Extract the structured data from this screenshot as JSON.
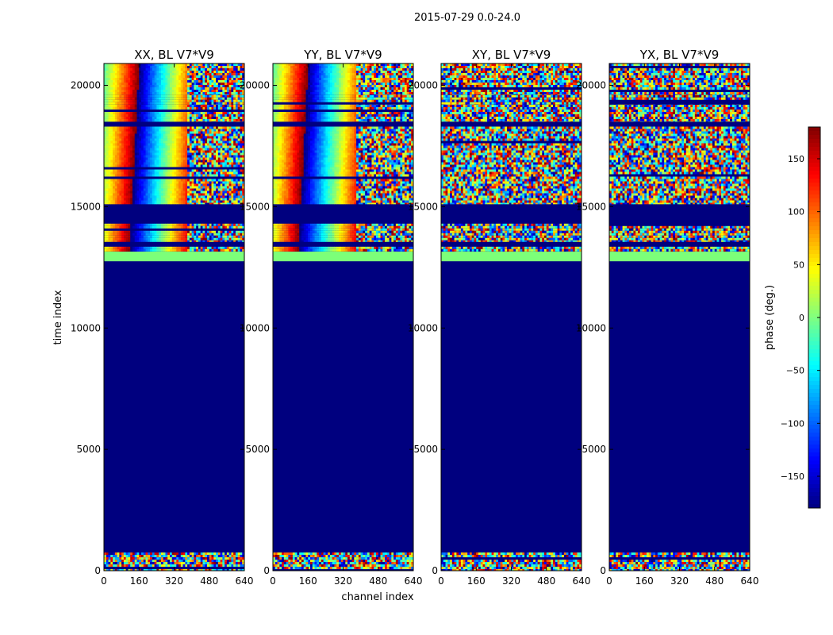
{
  "figure_title": "2015-07-29 0.0-24.0",
  "colors": {
    "background_phase": "#00007f",
    "green_band": "#7cff79",
    "frame": "#000000"
  },
  "chart_data": {
    "type": "heatmap",
    "title": "2015-07-29 0.0-24.0",
    "xlabel": "channel index",
    "ylabel": "time index",
    "xlim": [
      0,
      640
    ],
    "ylim": [
      0,
      20900
    ],
    "x_ticks": [
      0,
      160,
      320,
      480,
      640
    ],
    "y_ticks": [
      0,
      5000,
      10000,
      15000,
      20000
    ],
    "panels": [
      {
        "name": "XX",
        "title": "XX, BL V7*V9",
        "pattern": "fringe"
      },
      {
        "name": "YY",
        "title": "YY, BL V7*V9",
        "pattern": "fringe"
      },
      {
        "name": "XY",
        "title": "XY, BL V7*V9",
        "pattern": "noise"
      },
      {
        "name": "YX",
        "title": "YX, BL V7*V9",
        "pattern": "noise"
      }
    ],
    "bands": [
      {
        "y0": 0,
        "y1": 750,
        "kind": "noise"
      },
      {
        "y0": 750,
        "y1": 12750,
        "kind": "flagged"
      },
      {
        "y0": 12750,
        "y1": 13150,
        "kind": "zero"
      },
      {
        "y0": 13150,
        "y1": 13350,
        "kind": "signal"
      },
      {
        "y0": 13350,
        "y1": 13550,
        "kind": "flagged"
      },
      {
        "y0": 13550,
        "y1": 14300,
        "kind": "signal"
      },
      {
        "y0": 14300,
        "y1": 15100,
        "kind": "flagged"
      },
      {
        "y0": 15100,
        "y1": 18300,
        "kind": "signal"
      },
      {
        "y0": 18300,
        "y1": 18500,
        "kind": "flagged"
      },
      {
        "y0": 18500,
        "y1": 19200,
        "kind": "signal"
      },
      {
        "y0": 19200,
        "y1": 19600,
        "kind": "signal"
      },
      {
        "y0": 19600,
        "y1": 20900,
        "kind": "signal"
      }
    ],
    "colorbar": {
      "label": "phase (deg.)",
      "range": [
        -180,
        180
      ],
      "ticks": [
        -150,
        -100,
        -50,
        0,
        50,
        100,
        150
      ],
      "tick_labels": [
        "−150",
        "−100",
        "−50",
        "0",
        "50",
        "100",
        "150"
      ]
    }
  }
}
